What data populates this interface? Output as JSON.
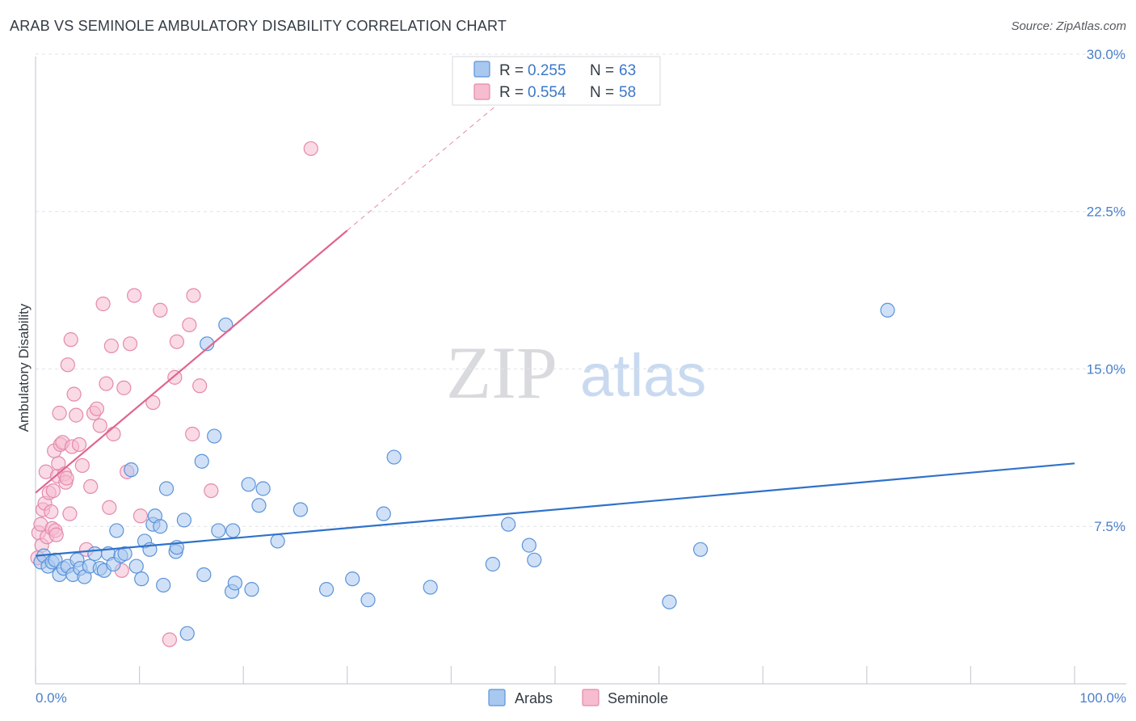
{
  "title": "ARAB VS SEMINOLE AMBULATORY DISABILITY CORRELATION CHART",
  "source": "Source: ZipAtlas.com",
  "watermark": {
    "zip": "ZIP",
    "atlas": "atlas"
  },
  "colors": {
    "arabs_fill": "#a9c8f0",
    "arabs_stroke": "#5b93d8",
    "arabs_line": "#2f72c9",
    "seminole_fill": "#f6bcd0",
    "seminole_stroke": "#e48aab",
    "seminole_line": "#e0658f",
    "grid": "#dfe3e8",
    "tick_text": "#4a7fc9"
  },
  "legend": {
    "rows": [
      {
        "r_label": "R =",
        "r_value": "0.255",
        "n_label": "N =",
        "n_value": "63"
      },
      {
        "r_label": "R =",
        "r_value": "0.554",
        "n_label": "N =",
        "n_value": "58"
      }
    ]
  },
  "chart_data": {
    "type": "scatter",
    "title": "ARAB VS SEMINOLE AMBULATORY DISABILITY CORRELATION CHART",
    "xlabel": "",
    "ylabel": "Ambulatory Disability",
    "xlim": [
      0,
      100
    ],
    "ylim": [
      0,
      31
    ],
    "x_tick_labels": [
      "0.0%",
      "100.0%"
    ],
    "y_ticks": [
      7.5,
      15.0,
      22.5,
      30.0
    ],
    "y_tick_labels": [
      "7.5%",
      "15.0%",
      "22.5%",
      "30.0%"
    ],
    "grid": true,
    "series": [
      {
        "name": "Arabs",
        "r": 0.255,
        "n": 63,
        "trend": {
          "x0": 0,
          "y0": 6.1,
          "x1": 100,
          "y1": 10.5
        },
        "points": [
          [
            0.5,
            5.8
          ],
          [
            0.8,
            6.1
          ],
          [
            1.2,
            5.6
          ],
          [
            1.6,
            5.8
          ],
          [
            1.9,
            5.9
          ],
          [
            2.3,
            5.2
          ],
          [
            2.7,
            5.5
          ],
          [
            3.1,
            5.6
          ],
          [
            3.6,
            5.2
          ],
          [
            4.0,
            5.9
          ],
          [
            4.3,
            5.5
          ],
          [
            4.7,
            5.1
          ],
          [
            5.2,
            5.6
          ],
          [
            5.7,
            6.2
          ],
          [
            6.2,
            5.5
          ],
          [
            6.6,
            5.4
          ],
          [
            7.0,
            6.2
          ],
          [
            7.5,
            5.7
          ],
          [
            7.8,
            7.3
          ],
          [
            8.2,
            6.1
          ],
          [
            8.6,
            6.2
          ],
          [
            9.2,
            10.2
          ],
          [
            9.7,
            5.6
          ],
          [
            10.2,
            5.0
          ],
          [
            10.5,
            6.8
          ],
          [
            11.0,
            6.4
          ],
          [
            11.3,
            7.6
          ],
          [
            11.5,
            8.0
          ],
          [
            12.0,
            7.5
          ],
          [
            12.3,
            4.7
          ],
          [
            12.6,
            9.3
          ],
          [
            13.5,
            6.3
          ],
          [
            13.6,
            6.5
          ],
          [
            14.3,
            7.8
          ],
          [
            14.6,
            2.4
          ],
          [
            16.0,
            10.6
          ],
          [
            16.2,
            5.2
          ],
          [
            16.5,
            16.2
          ],
          [
            17.2,
            11.8
          ],
          [
            17.6,
            7.3
          ],
          [
            18.3,
            17.1
          ],
          [
            18.9,
            4.4
          ],
          [
            19.0,
            7.3
          ],
          [
            19.2,
            4.8
          ],
          [
            20.5,
            9.5
          ],
          [
            20.8,
            4.5
          ],
          [
            21.5,
            8.5
          ],
          [
            21.9,
            9.3
          ],
          [
            23.3,
            6.8
          ],
          [
            25.5,
            8.3
          ],
          [
            28.0,
            4.5
          ],
          [
            30.5,
            5.0
          ],
          [
            32.0,
            4.0
          ],
          [
            33.5,
            8.1
          ],
          [
            34.5,
            10.8
          ],
          [
            38.0,
            4.6
          ],
          [
            44.0,
            5.7
          ],
          [
            45.5,
            7.6
          ],
          [
            47.5,
            6.6
          ],
          [
            48.0,
            5.9
          ],
          [
            61.0,
            3.9
          ],
          [
            64.0,
            6.4
          ],
          [
            82.0,
            17.8
          ]
        ]
      },
      {
        "name": "Seminole",
        "r": 0.554,
        "n": 58,
        "trend": {
          "x0": 0,
          "y0": 9.1,
          "x1": 30,
          "y1": 21.6
        },
        "trend_dashed": {
          "x0": 30,
          "y0": 21.6,
          "x1": 50,
          "y1": 29.9
        },
        "points": [
          [
            0.3,
            7.2
          ],
          [
            0.5,
            7.6
          ],
          [
            0.6,
            6.6
          ],
          [
            0.7,
            8.3
          ],
          [
            0.9,
            8.6
          ],
          [
            1.0,
            10.1
          ],
          [
            1.1,
            7.0
          ],
          [
            1.3,
            9.1
          ],
          [
            1.5,
            8.2
          ],
          [
            1.6,
            7.4
          ],
          [
            1.7,
            9.2
          ],
          [
            1.8,
            11.1
          ],
          [
            1.9,
            7.3
          ],
          [
            2.0,
            7.1
          ],
          [
            2.1,
            9.9
          ],
          [
            2.2,
            10.5
          ],
          [
            2.3,
            12.9
          ],
          [
            2.4,
            11.4
          ],
          [
            2.6,
            11.5
          ],
          [
            2.8,
            10.0
          ],
          [
            2.9,
            9.6
          ],
          [
            3.0,
            9.8
          ],
          [
            3.1,
            15.2
          ],
          [
            3.3,
            8.1
          ],
          [
            3.4,
            16.4
          ],
          [
            3.5,
            11.3
          ],
          [
            3.7,
            13.8
          ],
          [
            3.9,
            12.8
          ],
          [
            4.2,
            11.4
          ],
          [
            4.5,
            10.4
          ],
          [
            4.9,
            6.4
          ],
          [
            5.3,
            9.4
          ],
          [
            5.6,
            12.9
          ],
          [
            5.9,
            13.1
          ],
          [
            6.2,
            12.3
          ],
          [
            6.5,
            18.1
          ],
          [
            6.8,
            14.3
          ],
          [
            7.1,
            8.4
          ],
          [
            7.3,
            16.1
          ],
          [
            7.5,
            11.9
          ],
          [
            8.3,
            5.4
          ],
          [
            8.5,
            14.1
          ],
          [
            8.8,
            10.1
          ],
          [
            9.1,
            16.2
          ],
          [
            9.5,
            18.5
          ],
          [
            10.1,
            8.0
          ],
          [
            11.3,
            13.4
          ],
          [
            12.0,
            17.8
          ],
          [
            12.9,
            2.1
          ],
          [
            13.4,
            14.6
          ],
          [
            13.6,
            16.3
          ],
          [
            14.8,
            17.1
          ],
          [
            15.1,
            11.9
          ],
          [
            15.2,
            18.5
          ],
          [
            15.8,
            14.2
          ],
          [
            16.9,
            9.2
          ],
          [
            26.5,
            25.5
          ],
          [
            0.2,
            6.0
          ]
        ]
      }
    ]
  },
  "bottom_legend": {
    "arabs_label": "Arabs",
    "seminole_label": "Seminole"
  }
}
